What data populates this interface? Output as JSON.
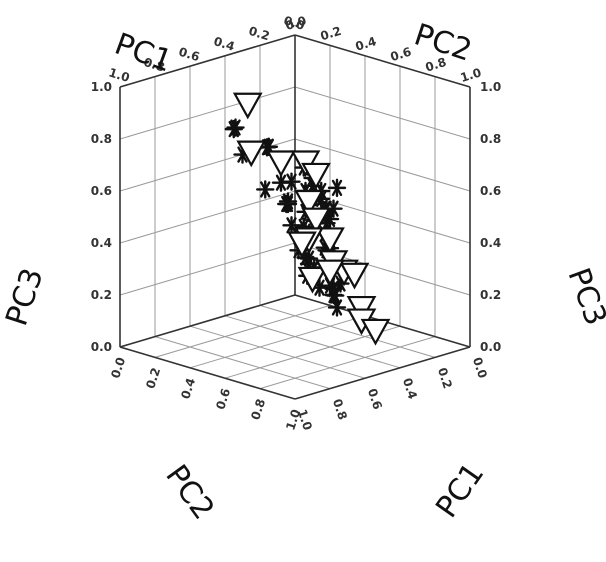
{
  "chart_data": {
    "type": "scatter3d",
    "axes": {
      "x": {
        "label": "PC1",
        "range": [
          0.0,
          1.0
        ],
        "ticks": [
          "0.0",
          "0.2",
          "0.4",
          "0.6",
          "0.8",
          "1.0"
        ]
      },
      "y": {
        "label": "PC2",
        "range": [
          0.0,
          1.0
        ],
        "ticks": [
          "0.0",
          "0.2",
          "0.4",
          "0.6",
          "0.8",
          "1.0"
        ]
      },
      "z": {
        "label": "PC3",
        "range": [
          0.0,
          1.0
        ],
        "ticks": [
          "0.0",
          "0.2",
          "0.4",
          "0.6",
          "0.8",
          "1.0"
        ]
      }
    },
    "grid": true,
    "series": [
      {
        "marker": "asterisk",
        "points": [
          [
            0.52,
            0.86,
            0.92
          ],
          [
            0.43,
            0.78,
            0.88
          ],
          [
            0.6,
            0.9,
            0.84
          ],
          [
            0.45,
            0.6,
            0.78
          ],
          [
            0.5,
            0.66,
            0.8
          ],
          [
            0.55,
            0.7,
            0.82
          ],
          [
            0.65,
            0.82,
            0.7
          ],
          [
            0.6,
            0.55,
            0.72
          ],
          [
            0.55,
            0.45,
            0.65
          ],
          [
            0.5,
            0.4,
            0.6
          ],
          [
            0.45,
            0.3,
            0.55
          ],
          [
            0.52,
            0.35,
            0.5
          ],
          [
            0.58,
            0.38,
            0.42
          ],
          [
            0.62,
            0.5,
            0.6
          ],
          [
            0.4,
            0.45,
            0.52
          ],
          [
            0.48,
            0.52,
            0.55
          ],
          [
            0.53,
            0.57,
            0.58
          ],
          [
            0.68,
            0.62,
            0.66
          ],
          [
            0.7,
            0.55,
            0.62
          ],
          [
            0.66,
            0.48,
            0.56
          ],
          [
            0.72,
            0.6,
            0.55
          ],
          [
            0.75,
            0.58,
            0.5
          ],
          [
            0.6,
            0.42,
            0.48
          ],
          [
            0.47,
            0.42,
            0.44
          ],
          [
            0.42,
            0.36,
            0.4
          ],
          [
            0.58,
            0.52,
            0.46
          ],
          [
            0.63,
            0.46,
            0.4
          ],
          [
            0.56,
            0.38,
            0.36
          ],
          [
            0.5,
            0.3,
            0.32
          ],
          [
            0.44,
            0.36,
            0.3
          ],
          [
            0.62,
            0.56,
            0.38
          ],
          [
            0.69,
            0.58,
            0.36
          ],
          [
            0.74,
            0.66,
            0.4
          ],
          [
            0.8,
            0.6,
            0.46
          ],
          [
            0.55,
            0.48,
            0.28
          ],
          [
            0.6,
            0.46,
            0.24
          ],
          [
            0.66,
            0.44,
            0.22
          ],
          [
            0.52,
            0.26,
            0.2
          ],
          [
            0.7,
            0.48,
            0.26
          ],
          [
            0.57,
            0.34,
            0.18
          ],
          [
            0.64,
            0.4,
            0.16
          ],
          [
            0.76,
            0.56,
            0.3
          ],
          [
            0.48,
            0.46,
            0.36
          ],
          [
            0.82,
            0.62,
            0.58
          ],
          [
            0.78,
            0.72,
            0.62
          ],
          [
            0.7,
            0.72,
            0.72
          ],
          [
            0.58,
            0.66,
            0.68
          ],
          [
            0.48,
            0.26,
            0.48
          ],
          [
            0.54,
            0.3,
            0.58
          ],
          [
            0.62,
            0.64,
            0.52
          ]
        ]
      },
      {
        "marker": "triangle-down",
        "points": [
          [
            0.7,
            0.95,
            0.88
          ],
          [
            0.78,
            0.86,
            0.84
          ],
          [
            0.9,
            0.84,
            0.86
          ],
          [
            0.9,
            0.78,
            0.8
          ],
          [
            0.28,
            0.55,
            0.9
          ],
          [
            0.84,
            0.76,
            0.68
          ],
          [
            0.78,
            0.66,
            0.58
          ],
          [
            0.86,
            0.66,
            0.52
          ],
          [
            0.7,
            0.62,
            0.48
          ],
          [
            0.62,
            0.58,
            0.44
          ],
          [
            0.74,
            0.52,
            0.38
          ],
          [
            0.86,
            0.58,
            0.38
          ],
          [
            0.92,
            0.58,
            0.38
          ],
          [
            0.54,
            0.44,
            0.26
          ],
          [
            0.62,
            0.42,
            0.3
          ],
          [
            0.86,
            0.48,
            0.22
          ],
          [
            0.78,
            0.4,
            0.14
          ],
          [
            0.92,
            0.46,
            0.14
          ]
        ]
      }
    ]
  }
}
